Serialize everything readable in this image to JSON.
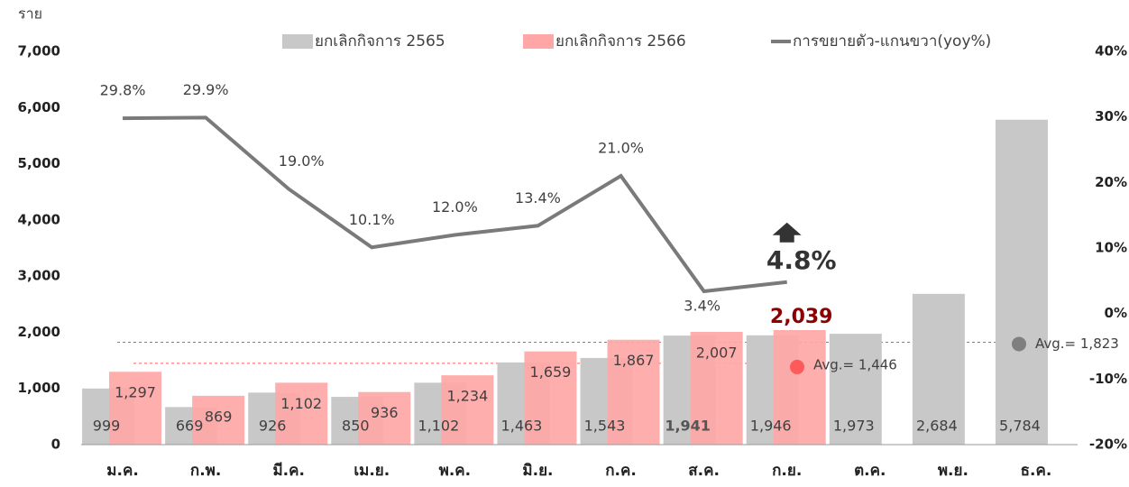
{
  "chart_data": {
    "type": "bar",
    "y_axis_label": "ราย",
    "categories": [
      "ม.ค.",
      "ก.พ.",
      "มี.ค.",
      "เม.ย.",
      "พ.ค.",
      "มิ.ย.",
      "ก.ค.",
      "ส.ค.",
      "ก.ย.",
      "ต.ค.",
      "พ.ย.",
      "ธ.ค."
    ],
    "series": [
      {
        "name": "ยกเลิกกิจการ 2565",
        "color": "#c9c8c8",
        "values": [
          999,
          669,
          926,
          850,
          1102,
          1463,
          1543,
          1941,
          1946,
          1973,
          2684,
          5784
        ],
        "value_labels": [
          "999",
          "669",
          "926",
          "850",
          "1,102",
          "1,463",
          "1,543",
          "1,941",
          "1,946",
          "1,973",
          "2,684",
          "5,784"
        ]
      },
      {
        "name": "ยกเลิกกิจการ 2566",
        "color": "#ffa7a7",
        "values": [
          1297,
          869,
          1102,
          936,
          1234,
          1659,
          1867,
          2007,
          2039,
          null,
          null,
          null
        ],
        "value_labels": [
          "1,297",
          "869",
          "1,102",
          "936",
          "1,234",
          "1,659",
          "1,867",
          "2,007",
          "2,039",
          null,
          null,
          null
        ]
      },
      {
        "name": "การขยายตัว-แกนขวา(yoy%)",
        "type": "line",
        "axis": "y2",
        "color": "#7a7a7a",
        "values": [
          29.8,
          29.9,
          19.0,
          10.1,
          12.0,
          13.4,
          21.0,
          3.4,
          4.8,
          null,
          null,
          null
        ],
        "value_labels": [
          "29.8%",
          "29.9%",
          "19.0%",
          "10.1%",
          "12.0%",
          "13.4%",
          "21.0%",
          "3.4%",
          "4.8%",
          null,
          null,
          null
        ]
      }
    ],
    "ylim": [
      0,
      7000
    ],
    "yticks": [
      0,
      {
        "value": 1000,
        "label": "1,000"
      },
      {
        "value": 2000,
        "label": "2,000"
      },
      {
        "value": 3000,
        "label": "3,000"
      },
      {
        "value": 4000,
        "label": "4,000"
      },
      {
        "value": 5000,
        "label": "5,000"
      },
      {
        "value": 6000,
        "label": "6,000"
      },
      {
        "value": 7000,
        "label": "7,000"
      }
    ],
    "y2lim": [
      -20,
      40
    ],
    "y2ticks": [
      {
        "value": -20,
        "label": "-20%"
      },
      {
        "value": -10,
        "label": "-10%"
      },
      {
        "value": 0,
        "label": "0%"
      },
      {
        "value": 10,
        "label": "10%"
      },
      {
        "value": 20,
        "label": "20%"
      },
      {
        "value": 30,
        "label": "30%"
      },
      {
        "value": 40,
        "label": "40%"
      }
    ],
    "annotations": [
      {
        "text": "Avg.= 1,823",
        "value": 1823,
        "color": "#7f7f7f"
      },
      {
        "text": "Avg.= 1,446",
        "value": 1446,
        "color": "#ff5a5a"
      }
    ]
  }
}
